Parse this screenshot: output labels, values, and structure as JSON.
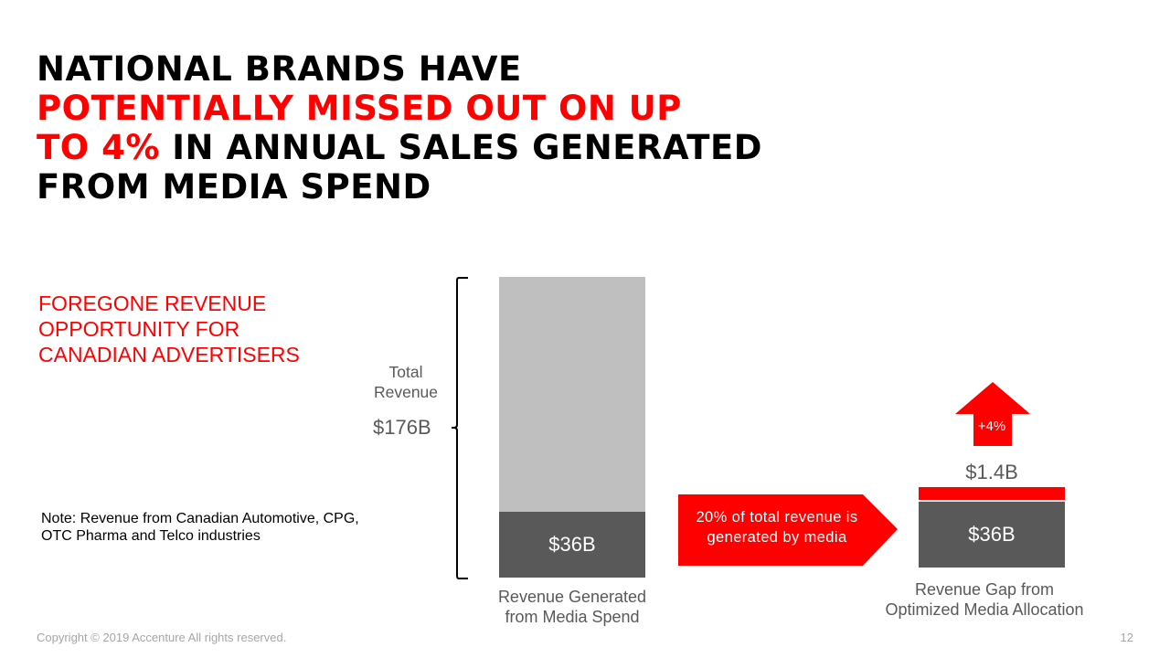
{
  "slide": {
    "title": {
      "line1": "NATIONAL BRANDS HAVE",
      "line2_red": "POTENTIALLY MISSED OUT ON UP",
      "line3_red": "TO 4%",
      "line3_rest": " IN ANNUAL SALES GENERATED",
      "line4": "FROM MEDIA SPEND"
    },
    "subtitle": [
      "FOREGONE REVENUE",
      "OPPORTUNITY FOR",
      "CANADIAN ADVERTISERS"
    ],
    "note": [
      "Note: Revenue from Canadian Automotive, CPG,",
      "OTC Pharma and Telco industries"
    ],
    "footer": {
      "copyright": "Copyright © 2019 Accenture All rights reserved.",
      "page_number": "12"
    }
  },
  "chart_data": [
    {
      "type": "bar",
      "total_label": [
        "Total",
        "Revenue"
      ],
      "total_value_label": "$176B",
      "total_value": 176,
      "segments": [
        {
          "label": "$36B",
          "value": 36,
          "color": "#595959"
        },
        {
          "value": 140,
          "color": "#bfbfbf"
        }
      ],
      "caption": [
        "Revenue Generated",
        "from Media Spend"
      ]
    },
    {
      "type": "bar",
      "segments": [
        {
          "label": "$36B",
          "value": 36,
          "color": "#595959"
        },
        {
          "label": "$1.4B",
          "value": 1.4,
          "color": "#ff0000"
        }
      ],
      "increase_label": "+4%",
      "caption": [
        "Revenue Gap from",
        "Optimized Media Allocation"
      ]
    }
  ],
  "callout": {
    "lines": [
      "20% of total revenue is",
      "generated by media"
    ],
    "color": "#ff0000"
  },
  "colors": {
    "accent": "#ff0000",
    "dark_gray": "#595959",
    "light_gray": "#bfbfbf",
    "muted_text": "#a6a6a6"
  }
}
